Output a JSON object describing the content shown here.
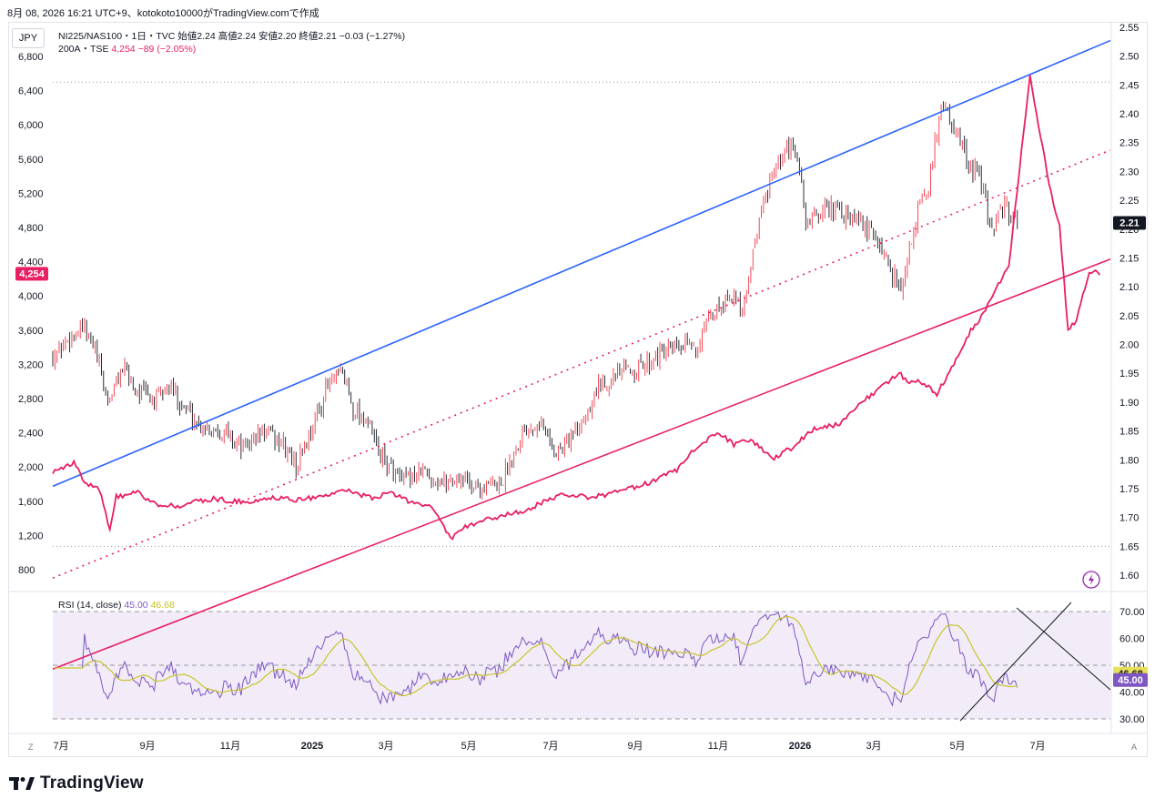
{
  "header": {
    "caption": "8月 08, 2026 16:21 UTC+9、kotokoto10000がTradingView.comで作成"
  },
  "currency": "JPY",
  "legend": {
    "line1": "NI225/NAS100・1日・TVC 始値2.24 高値2.24 安値2.20 終値2.21 −0.03 (−1.27%)",
    "line2_name": "200A・TSE",
    "line2_values": "4,254 −89 (−2.05%)"
  },
  "rsi_legend": {
    "name": "RSI (14, close)",
    "rsi": "45.00",
    "ma": "46.68"
  },
  "badges": {
    "price_right": "2.21",
    "price_left": "4,254",
    "rsi": "45.00",
    "rsi_ma": "46.68"
  },
  "corners": {
    "left": "Z",
    "right": "A"
  },
  "brand": "TradingView",
  "colors": {
    "up": "#f23645",
    "down": "#131722",
    "line200A": "#e91e63",
    "channel_top": "#2962ff",
    "rsi": "#7e57c2",
    "rsi_ma": "#c9c42a",
    "rsi_band": "#ede7f6"
  },
  "chart_data": [
    {
      "type": "candlestick",
      "series_name": "NI225/NAS100",
      "x_ticks": [
        "7月",
        "9月",
        "11月",
        "2025",
        "3月",
        "5月",
        "7月",
        "9月",
        "11月",
        "2026",
        "3月",
        "5月",
        "7月"
      ],
      "right_axis_ticks": [
        "2.55",
        "2.50",
        "2.45",
        "2.40",
        "2.35",
        "2.30",
        "2.25",
        "2.20",
        "2.15",
        "2.10",
        "2.05",
        "2.00",
        "1.95",
        "1.90",
        "1.85",
        "1.80",
        "1.75",
        "1.70",
        "1.65",
        "1.60"
      ],
      "ohlc_last": {
        "open": 2.24,
        "high": 2.24,
        "low": 2.2,
        "close": 2.21
      },
      "close_path": [
        [
          0,
          1.98
        ],
        [
          8,
          2.01
        ],
        [
          14,
          2.03
        ],
        [
          20,
          1.99
        ],
        [
          26,
          1.9
        ],
        [
          33,
          1.96
        ],
        [
          40,
          1.92
        ],
        [
          48,
          1.9
        ],
        [
          55,
          1.93
        ],
        [
          62,
          1.89
        ],
        [
          70,
          1.86
        ],
        [
          80,
          1.85
        ],
        [
          90,
          1.82
        ],
        [
          100,
          1.85
        ],
        [
          108,
          1.83
        ],
        [
          115,
          1.79
        ],
        [
          122,
          1.85
        ],
        [
          130,
          1.93
        ],
        [
          137,
          1.95
        ],
        [
          142,
          1.89
        ],
        [
          148,
          1.87
        ],
        [
          156,
          1.8
        ],
        [
          165,
          1.76
        ],
        [
          175,
          1.78
        ],
        [
          184,
          1.76
        ],
        [
          193,
          1.77
        ],
        [
          202,
          1.75
        ],
        [
          212,
          1.76
        ],
        [
          222,
          1.85
        ],
        [
          230,
          1.87
        ],
        [
          238,
          1.81
        ],
        [
          248,
          1.85
        ],
        [
          258,
          1.93
        ],
        [
          268,
          1.95
        ],
        [
          278,
          1.96
        ],
        [
          285,
          1.98
        ],
        [
          295,
          1.99
        ],
        [
          305,
          2.0
        ],
        [
          312,
          2.05
        ],
        [
          320,
          2.09
        ],
        [
          326,
          2.06
        ],
        [
          332,
          2.18
        ],
        [
          338,
          2.27
        ],
        [
          342,
          2.3
        ],
        [
          348,
          2.34
        ],
        [
          352,
          2.33
        ],
        [
          356,
          2.21
        ],
        [
          362,
          2.23
        ],
        [
          368,
          2.24
        ],
        [
          374,
          2.22
        ],
        [
          382,
          2.21
        ],
        [
          390,
          2.18
        ],
        [
          396,
          2.13
        ],
        [
          402,
          2.1
        ],
        [
          408,
          2.22
        ],
        [
          414,
          2.27
        ],
        [
          420,
          2.42
        ],
        [
          426,
          2.38
        ],
        [
          432,
          2.32
        ],
        [
          438,
          2.29
        ],
        [
          444,
          2.2
        ],
        [
          450,
          2.24
        ],
        [
          456,
          2.21
        ]
      ],
      "channel_top": {
        "from": [
          0,
          1.754
        ],
        "to": [
          500,
          2.527
        ]
      },
      "channel_bottom": {
        "from": [
          0,
          1.437
        ],
        "to": [
          500,
          2.148
        ]
      },
      "channel_mid_dotted": {
        "from": [
          0,
          1.595
        ],
        "to": [
          500,
          2.337
        ]
      }
    },
    {
      "type": "line",
      "series_name": "200A・TSE",
      "left_axis_ticks": [
        "6,800",
        "6,400",
        "6,000",
        "5,600",
        "5,200",
        "4,800",
        "4,400",
        "4,000",
        "3,600",
        "3,200",
        "2,800",
        "2,400",
        "2,000",
        "1,600",
        "1,200",
        "800"
      ],
      "points": [
        [
          0,
          1950
        ],
        [
          10,
          2050
        ],
        [
          16,
          1800
        ],
        [
          22,
          1750
        ],
        [
          27,
          1250
        ],
        [
          30,
          1650
        ],
        [
          40,
          1700
        ],
        [
          50,
          1550
        ],
        [
          60,
          1550
        ],
        [
          75,
          1630
        ],
        [
          90,
          1590
        ],
        [
          105,
          1640
        ],
        [
          115,
          1620
        ],
        [
          125,
          1650
        ],
        [
          140,
          1720
        ],
        [
          150,
          1640
        ],
        [
          160,
          1690
        ],
        [
          170,
          1580
        ],
        [
          180,
          1520
        ],
        [
          186,
          1250
        ],
        [
          188,
          1150
        ],
        [
          195,
          1300
        ],
        [
          205,
          1380
        ],
        [
          215,
          1450
        ],
        [
          225,
          1500
        ],
        [
          235,
          1640
        ],
        [
          245,
          1680
        ],
        [
          255,
          1640
        ],
        [
          265,
          1700
        ],
        [
          275,
          1760
        ],
        [
          285,
          1850
        ],
        [
          295,
          1960
        ],
        [
          305,
          2250
        ],
        [
          315,
          2400
        ],
        [
          322,
          2260
        ],
        [
          330,
          2320
        ],
        [
          340,
          2100
        ],
        [
          350,
          2230
        ],
        [
          360,
          2460
        ],
        [
          372,
          2500
        ],
        [
          380,
          2720
        ],
        [
          390,
          2900
        ],
        [
          400,
          3100
        ],
        [
          404,
          3000
        ],
        [
          410,
          3000
        ],
        [
          418,
          2850
        ],
        [
          426,
          3200
        ],
        [
          432,
          3520
        ],
        [
          440,
          3800
        ],
        [
          452,
          4350
        ],
        [
          458,
          5700
        ],
        [
          462,
          6600
        ],
        [
          466,
          6000
        ],
        [
          472,
          5200
        ],
        [
          476,
          4800
        ],
        [
          480,
          3600
        ],
        [
          484,
          3700
        ],
        [
          490,
          4300
        ],
        [
          495,
          4254
        ]
      ]
    },
    {
      "type": "line",
      "series_name": "RSI (14, close)",
      "ylim": [
        30,
        70
      ],
      "levels": [
        70,
        50,
        30
      ],
      "right_axis_ticks": [
        "70.00",
        "60.00",
        "50.00",
        "40.00",
        "30.00"
      ],
      "last": {
        "rsi": 45.0,
        "ma": 46.68
      }
    }
  ]
}
